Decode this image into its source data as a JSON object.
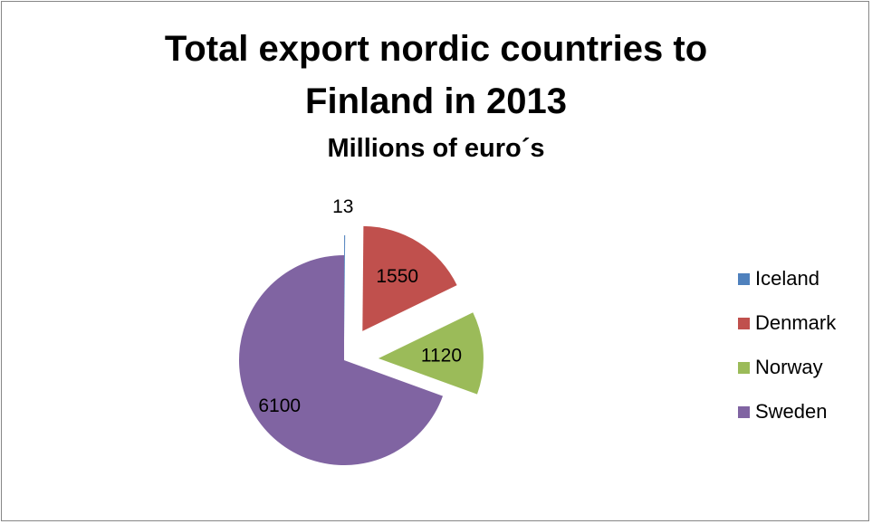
{
  "chart_data": {
    "type": "pie",
    "title": "Total export nordic countries to Finland in 2013",
    "title_lines": [
      "Total export nordic countries to",
      "Finland in 2013"
    ],
    "subtitle": "Millions of euro´s",
    "categories": [
      "Iceland",
      "Denmark",
      "Norway",
      "Sweden"
    ],
    "values": [
      13,
      1550,
      1120,
      6100
    ],
    "colors": [
      "#4F81BD",
      "#C0504D",
      "#9BBB59",
      "#8064A2"
    ],
    "exploded": true,
    "legend_position": "right",
    "data_labels": [
      "13",
      "1550",
      "1120",
      "6100"
    ]
  }
}
